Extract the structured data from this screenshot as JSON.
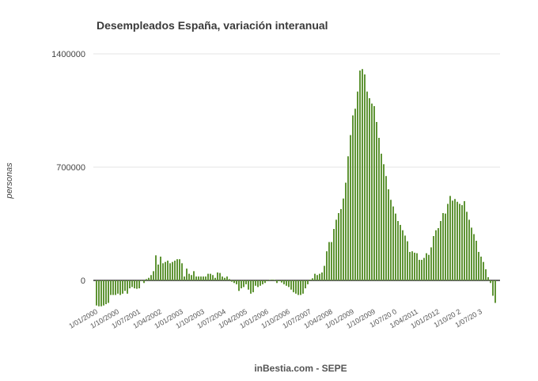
{
  "chart_data": {
    "type": "bar",
    "title": "Desempleados España, variación interanual",
    "ylabel": "personas",
    "xlabel": "",
    "footer": "inBestia.com - SEPE",
    "x_start": "1/01/2000",
    "x_step": "1 month",
    "ylim": [
      -200000,
      1400000
    ],
    "yticks": [
      "0",
      "700000",
      "1400000"
    ],
    "ytick_values": [
      0,
      700000,
      1400000
    ],
    "xtick_labels": [
      "1/01/2000",
      "1/10/2000",
      "1/07/2001",
      "1/04/2002",
      "1/01/2003",
      "1/10/2003",
      "1/07/2004",
      "1/04/2005",
      "1/01/2006",
      "1/10/2006",
      "1/07/2007",
      "1/04/2008",
      "1/01/2009",
      "1/10/2009",
      "1/07/20 0",
      "1/04/2011",
      "1/01/2012",
      "1/10/20 2",
      "1/07/20 3"
    ],
    "xtick_every_months": 9,
    "grid": true,
    "bar_color": "#5f9435",
    "values": [
      -155000,
      -160000,
      -160000,
      -155000,
      -147000,
      -139000,
      -90000,
      -90000,
      -90000,
      -82000,
      -90000,
      -82000,
      -65000,
      -82000,
      -49000,
      -41000,
      -49000,
      -52000,
      -49000,
      -3000,
      -16000,
      8000,
      16000,
      33000,
      57000,
      155000,
      98000,
      147000,
      106000,
      114000,
      122000,
      106000,
      114000,
      122000,
      131000,
      131000,
      106000,
      24000,
      73000,
      41000,
      33000,
      57000,
      24000,
      24000,
      24000,
      24000,
      24000,
      41000,
      41000,
      33000,
      16000,
      49000,
      46000,
      24000,
      16000,
      24000,
      8000,
      -8000,
      -16000,
      -24000,
      -65000,
      -49000,
      -41000,
      -24000,
      -57000,
      -82000,
      -73000,
      -33000,
      -41000,
      -33000,
      -24000,
      -16000,
      -5000,
      3000,
      5000,
      3000,
      -16000,
      -5000,
      -13000,
      -24000,
      -33000,
      -41000,
      -57000,
      -73000,
      -82000,
      -90000,
      -90000,
      -82000,
      -49000,
      -24000,
      5000,
      13000,
      41000,
      33000,
      41000,
      49000,
      90000,
      180000,
      237000,
      237000,
      318000,
      375000,
      416000,
      441000,
      506000,
      604000,
      767000,
      898000,
      1020000,
      1061000,
      1167000,
      1297000,
      1306000,
      1273000,
      1167000,
      1126000,
      1093000,
      1077000,
      979000,
      881000,
      783000,
      718000,
      645000,
      563000,
      498000,
      457000,
      413000,
      367000,
      343000,
      310000,
      277000,
      242000,
      176000,
      180000,
      171000,
      168000,
      127000,
      127000,
      139000,
      168000,
      158000,
      204000,
      274000,
      310000,
      323000,
      367000,
      416000,
      413000,
      473000,
      522000,
      493000,
      503000,
      486000,
      473000,
      465000,
      490000,
      424000,
      375000,
      326000,
      286000,
      245000,
      176000,
      147000,
      114000,
      69000,
      20000,
      -16000,
      -95000,
      -139000
    ]
  }
}
